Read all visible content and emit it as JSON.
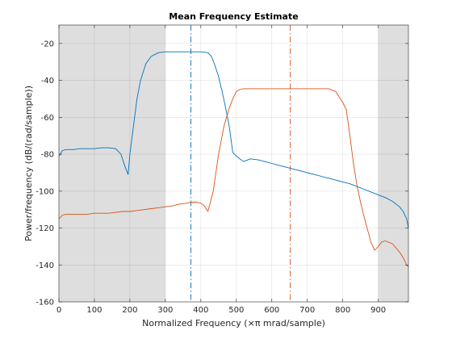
{
  "chart_data": {
    "type": "line",
    "title": "Mean Frequency Estimate",
    "xlabel": "Normalized Frequency  (×π mrad/sample)",
    "ylabel": "Power/frequency (dB/(rad/sample))",
    "xlim": [
      0,
      985
    ],
    "ylim": [
      -160,
      -10
    ],
    "xticks": [
      0,
      100,
      200,
      300,
      400,
      500,
      600,
      700,
      800,
      900
    ],
    "yticks": [
      -160,
      -140,
      -120,
      -100,
      -80,
      -60,
      -40,
      -20
    ],
    "grid": true,
    "shaded_regions": [
      [
        0,
        300
      ],
      [
        900,
        985
      ]
    ],
    "mean_frequency_markers": [
      {
        "x": 372,
        "color": "#0072bd"
      },
      {
        "x": 652,
        "color": "#d95319"
      }
    ],
    "series": [
      {
        "color": "#0072bd",
        "x": [
          0,
          10,
          20,
          40,
          60,
          80,
          100,
          120,
          140,
          160,
          175,
          185,
          195,
          200,
          210,
          220,
          230,
          245,
          260,
          280,
          300,
          320,
          340,
          360,
          380,
          400,
          420,
          430,
          440,
          450,
          460,
          470,
          480,
          490,
          500,
          520,
          540,
          560,
          580,
          600,
          620,
          640,
          660,
          680,
          700,
          720,
          740,
          760,
          780,
          800,
          820,
          840,
          860,
          880,
          900,
          920,
          940,
          960,
          970,
          980,
          985
        ],
        "values": [
          -81,
          -78,
          -77.5,
          -77.5,
          -77,
          -77,
          -77,
          -76.5,
          -76.5,
          -77,
          -80,
          -86,
          -91,
          -80,
          -65,
          -50,
          -40,
          -31,
          -27,
          -25,
          -24.5,
          -24.5,
          -24.5,
          -24.5,
          -24.5,
          -24.5,
          -25,
          -27,
          -32,
          -38,
          -46,
          -55,
          -65,
          -79,
          -81,
          -84,
          -82.5,
          -83,
          -84,
          -85,
          -86,
          -87,
          -88,
          -89,
          -90,
          -91,
          -92,
          -93,
          -94,
          -95,
          -96,
          -97.5,
          -99,
          -100.5,
          -102,
          -103.5,
          -105.5,
          -108.5,
          -111,
          -115,
          -120
        ]
      },
      {
        "color": "#d95319",
        "x": [
          0,
          10,
          20,
          40,
          60,
          80,
          100,
          120,
          140,
          160,
          180,
          200,
          220,
          240,
          260,
          280,
          300,
          320,
          340,
          360,
          375,
          390,
          400,
          410,
          420,
          435,
          450,
          465,
          480,
          490,
          500,
          510,
          520,
          530,
          540,
          560,
          580,
          600,
          620,
          640,
          660,
          680,
          700,
          720,
          740,
          760,
          780,
          790,
          800,
          810,
          820,
          830,
          840,
          850,
          860,
          870,
          880,
          890,
          900,
          910,
          920,
          940,
          960,
          970,
          980,
          985
        ],
        "values": [
          -115,
          -113,
          -112.5,
          -112.5,
          -112.5,
          -112.5,
          -112,
          -112,
          -112,
          -111.5,
          -111,
          -111,
          -110.5,
          -110,
          -109.5,
          -109,
          -108.5,
          -108,
          -107,
          -106.5,
          -106,
          -106,
          -106.5,
          -108,
          -111,
          -100,
          -80,
          -65,
          -55,
          -50,
          -46,
          -45,
          -44.5,
          -44.5,
          -44.5,
          -44.5,
          -44.5,
          -44.5,
          -44.5,
          -44.5,
          -44.5,
          -44.5,
          -44.5,
          -44.5,
          -44.5,
          -44.5,
          -46,
          -49,
          -52,
          -56,
          -70,
          -85,
          -97,
          -106,
          -114,
          -121,
          -128,
          -132,
          -130,
          -127.5,
          -127,
          -128.5,
          -133,
          -136,
          -140,
          -141
        ]
      }
    ]
  }
}
